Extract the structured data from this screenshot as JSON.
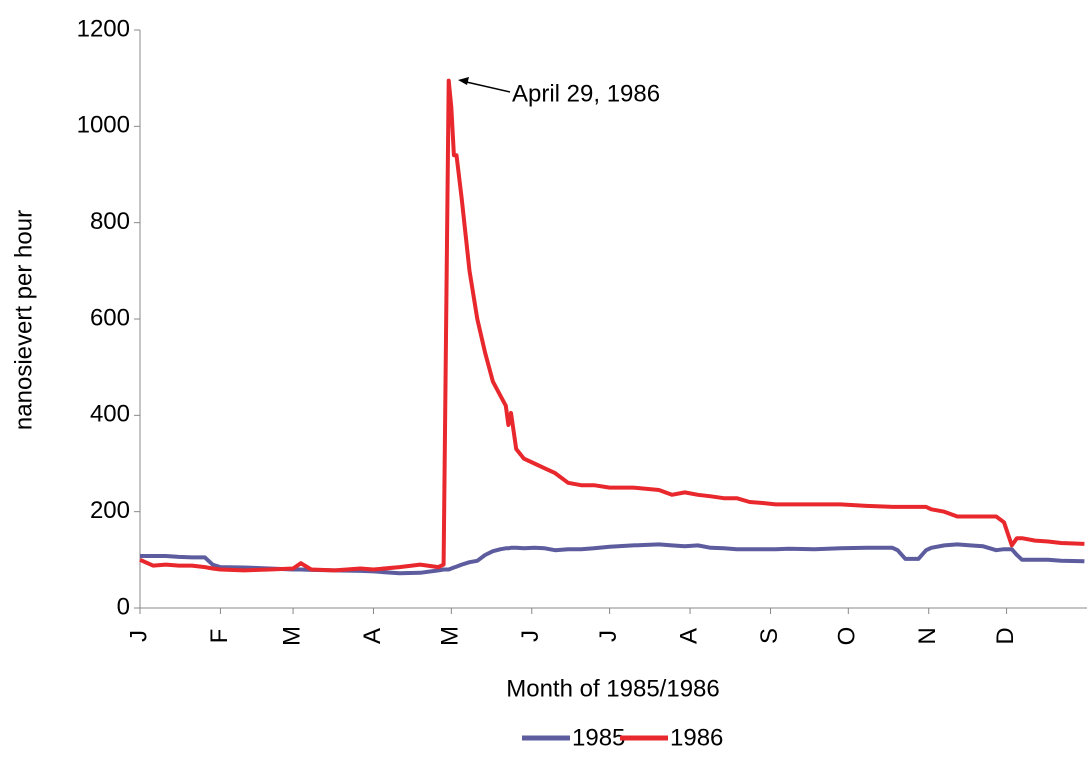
{
  "chart_data": {
    "type": "line",
    "y_label": "nanosievert per hour",
    "x_label": "Month of 1985/1986",
    "annotation": "April 29, 1986",
    "grid": false,
    "legend": "bottom",
    "xlim": [
      0,
      365
    ],
    "ylim": [
      0,
      1200
    ],
    "yticks": [
      0,
      200,
      400,
      600,
      800,
      1000,
      1200
    ],
    "xticks": [
      {
        "value": 0,
        "label": "J"
      },
      {
        "value": 31,
        "label": "F"
      },
      {
        "value": 59,
        "label": "M"
      },
      {
        "value": 90,
        "label": "A"
      },
      {
        "value": 120,
        "label": "M"
      },
      {
        "value": 151,
        "label": "J"
      },
      {
        "value": 181,
        "label": "J"
      },
      {
        "value": 212,
        "label": "A"
      },
      {
        "value": 243,
        "label": "S"
      },
      {
        "value": 273,
        "label": "O"
      },
      {
        "value": 304,
        "label": "N"
      },
      {
        "value": 334,
        "label": "D"
      }
    ],
    "x": [
      0,
      5,
      10,
      15,
      20,
      25,
      28,
      31,
      40,
      50,
      59,
      62,
      66,
      75,
      85,
      90,
      100,
      108,
      115,
      117,
      119,
      120,
      121,
      122,
      124,
      127,
      130,
      133,
      136,
      139,
      141,
      142,
      143,
      145,
      148,
      152,
      156,
      160,
      165,
      170,
      175,
      181,
      190,
      200,
      205,
      210,
      215,
      220,
      225,
      230,
      235,
      240,
      245,
      250,
      260,
      270,
      280,
      290,
      292,
      295,
      300,
      303,
      305,
      310,
      315,
      320,
      325,
      330,
      333,
      336,
      338,
      340,
      345,
      350,
      355,
      364
    ],
    "series": [
      {
        "name": "1985",
        "color": "#5c5c9e",
        "values": [
          108,
          108,
          108,
          106,
          105,
          105,
          90,
          85,
          84,
          82,
          80,
          80,
          79,
          78,
          77,
          76,
          72,
          73,
          78,
          80,
          80,
          82,
          84,
          86,
          90,
          95,
          98,
          110,
          118,
          122,
          124,
          124,
          125,
          125,
          124,
          125,
          124,
          120,
          122,
          122,
          124,
          127,
          130,
          132,
          130,
          128,
          130,
          125,
          124,
          122,
          122,
          122,
          122,
          123,
          122,
          124,
          125,
          125,
          120,
          102,
          102,
          120,
          125,
          130,
          132,
          130,
          128,
          120,
          122,
          122,
          110,
          100,
          100,
          100,
          98,
          97
        ]
      },
      {
        "name": "1986",
        "color": "#e8282c",
        "values": [
          100,
          88,
          90,
          88,
          88,
          85,
          82,
          80,
          78,
          80,
          82,
          93,
          80,
          78,
          82,
          80,
          85,
          90,
          85,
          90,
          1095,
          1040,
          940,
          940,
          850,
          700,
          600,
          530,
          470,
          440,
          420,
          380,
          405,
          330,
          310,
          300,
          290,
          280,
          260,
          255,
          255,
          250,
          250,
          245,
          235,
          240,
          235,
          232,
          228,
          228,
          220,
          218,
          215,
          215,
          215,
          215,
          212,
          210,
          210,
          210,
          210,
          210,
          205,
          200,
          190,
          190,
          190,
          190,
          178,
          130,
          145,
          145,
          140,
          138,
          135,
          133
        ]
      }
    ]
  }
}
